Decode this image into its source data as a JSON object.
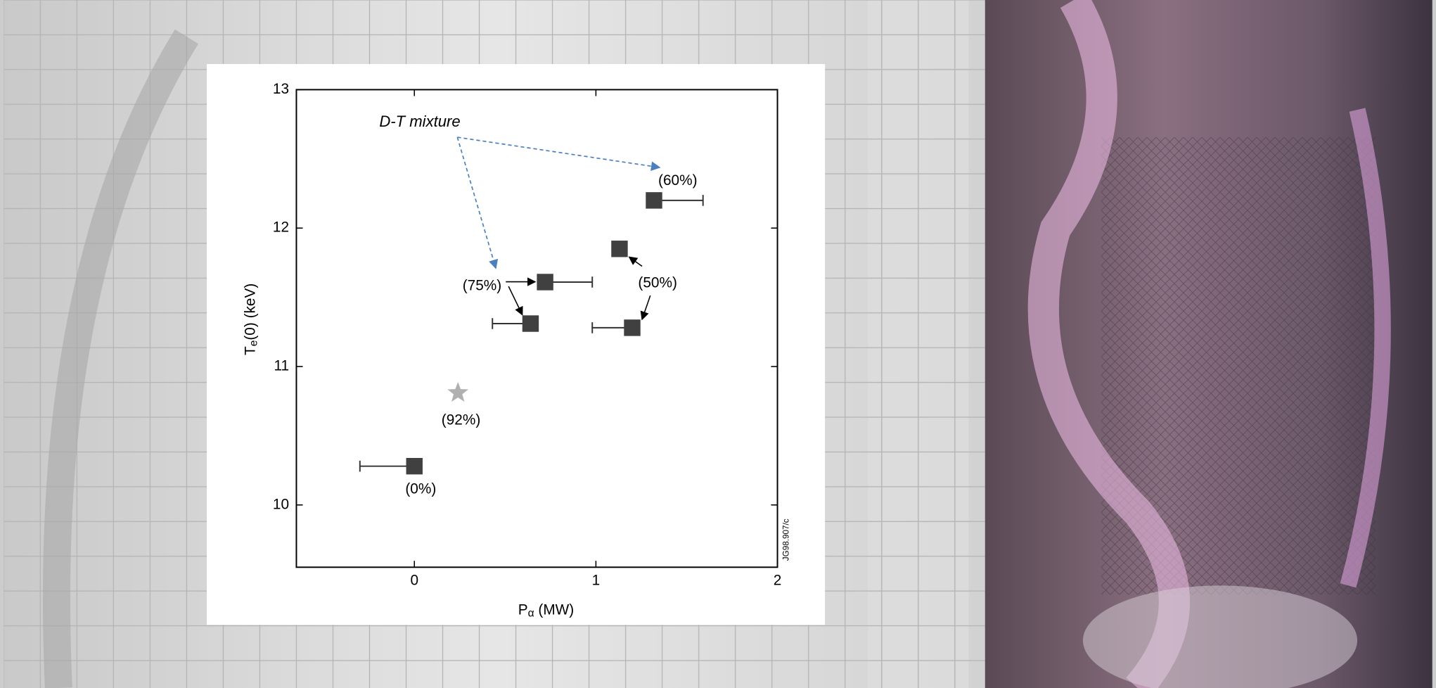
{
  "chart_data": {
    "type": "scatter",
    "xlabel": {
      "main": "P",
      "sub": "α",
      "rest": " (MW)"
    },
    "ylabel": {
      "main": "T",
      "sub": "e",
      "rest": "(0) (keV)"
    },
    "xlim": [
      -0.65,
      2
    ],
    "xticks": [
      0,
      1,
      2
    ],
    "ylim": [
      9.55,
      13
    ],
    "yticks": [
      10,
      11,
      12,
      13
    ],
    "points": {
      "color": "#404040",
      "x": [
        0,
        0.72,
        0.64,
        1.13,
        1.2,
        1.32
      ],
      "y": [
        10.28,
        11.61,
        11.31,
        11.85,
        11.28,
        12.2
      ],
      "xerr_minus": [
        0.3,
        null,
        0.21,
        null,
        0.22,
        null
      ],
      "xerr_plus": [
        null,
        0.26,
        null,
        null,
        null,
        0.27
      ]
    },
    "star": {
      "color": "#b0b0b0",
      "x": 0.24,
      "y": 10.81
    },
    "annotations": [
      "(0%)",
      "(92%)",
      "(75%)",
      "(50%)",
      "(60%)",
      "D-T mixture"
    ],
    "figure_id": "JG98.907/c"
  }
}
